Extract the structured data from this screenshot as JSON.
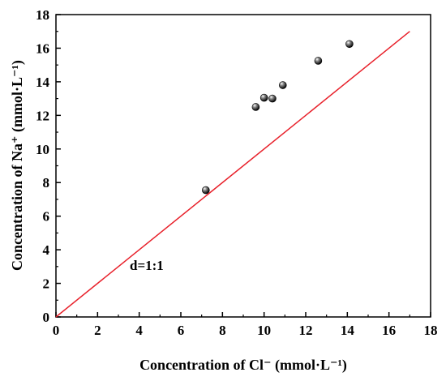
{
  "chart_data": {
    "type": "scatter",
    "title": "",
    "xlabel": "Concentration of Cl⁻ (mmol·L⁻¹)",
    "ylabel": "Concentration of Na⁺ (mmol·L⁻¹)",
    "xlim": [
      0,
      18
    ],
    "ylim": [
      0,
      18
    ],
    "xticks": [
      "0",
      "2",
      "4",
      "6",
      "8",
      "10",
      "12",
      "14",
      "16",
      "18"
    ],
    "yticks": [
      "0",
      "2",
      "4",
      "6",
      "8",
      "10",
      "12",
      "14",
      "16",
      "18"
    ],
    "grid": false,
    "series": [
      {
        "points": [
          {
            "x": 7.2,
            "y": 7.55
          },
          {
            "x": 9.6,
            "y": 12.5
          },
          {
            "x": 10.0,
            "y": 13.05
          },
          {
            "x": 10.4,
            "y": 13.0
          },
          {
            "x": 10.9,
            "y": 13.8
          },
          {
            "x": 12.6,
            "y": 15.25
          },
          {
            "x": 14.1,
            "y": 16.25
          }
        ],
        "color": "#000000",
        "marker": "sphere"
      }
    ],
    "reference_line": {
      "label": "d=1:1",
      "from": {
        "x": 0,
        "y": 0
      },
      "to": {
        "x": 17,
        "y": 17
      },
      "color": "#e8202a"
    }
  }
}
